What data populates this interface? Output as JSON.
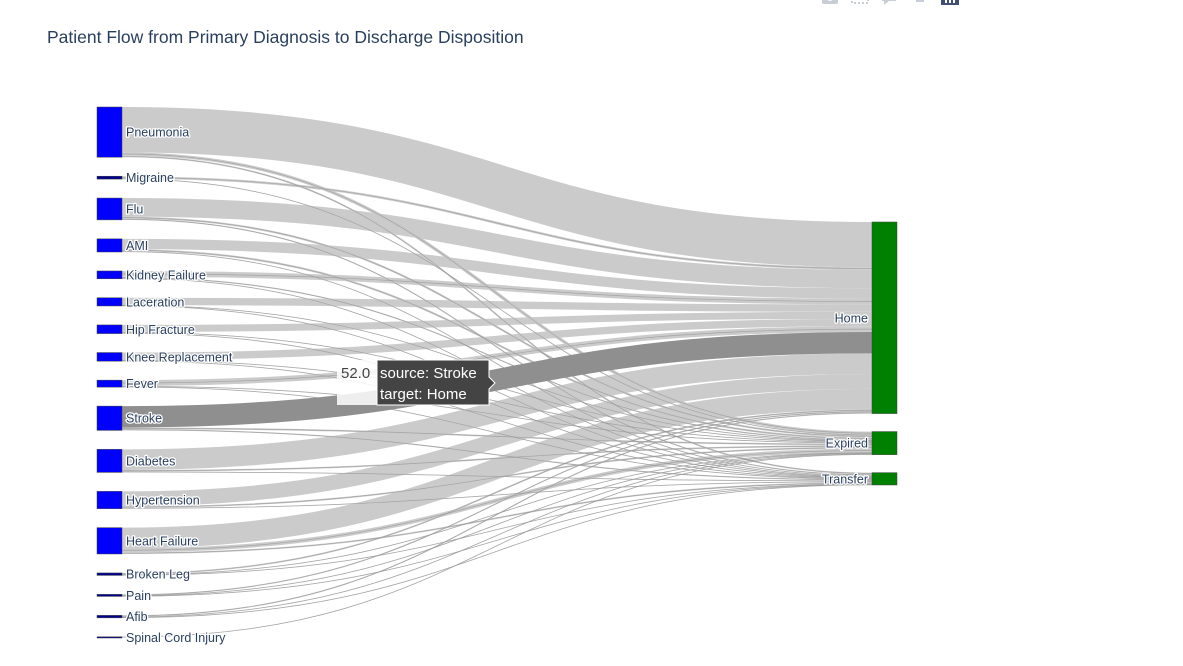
{
  "chart_data": {
    "type": "sankey",
    "title": "Patient Flow from Primary Diagnosis to Discharge Disposition",
    "colors": {
      "source_node": "#0000ff",
      "small_source_node": "#00008b",
      "target_node": "#008000",
      "link": "#c8c8c8",
      "link_hover": "#8f8f8f",
      "title": "#2a3f5f"
    },
    "source_nodes": [
      "Pneumonia",
      "Migraine",
      "Flu",
      "AMI",
      "Kidney Failure",
      "Laceration",
      "Hip Fracture",
      "Knee Replacement",
      "Fever",
      "Stroke",
      "Diabetes",
      "Hypertension",
      "Heart Failure",
      "Broken Leg",
      "Pain",
      "Afib",
      "Spinal Cord Injury"
    ],
    "target_nodes": [
      "Home",
      "Expired",
      "Transfer"
    ],
    "links": [
      {
        "source": "Pneumonia",
        "target": "Home",
        "value": 110
      },
      {
        "source": "Pneumonia",
        "target": "Expired",
        "value": 8
      },
      {
        "source": "Pneumonia",
        "target": "Transfer",
        "value": 4
      },
      {
        "source": "Migraine",
        "target": "Home",
        "value": 6
      },
      {
        "source": "Migraine",
        "target": "Expired",
        "value": 1
      },
      {
        "source": "Flu",
        "target": "Home",
        "value": 45
      },
      {
        "source": "Flu",
        "target": "Expired",
        "value": 5
      },
      {
        "source": "Flu",
        "target": "Transfer",
        "value": 3
      },
      {
        "source": "AMI",
        "target": "Home",
        "value": 25
      },
      {
        "source": "AMI",
        "target": "Expired",
        "value": 5
      },
      {
        "source": "AMI",
        "target": "Transfer",
        "value": 2
      },
      {
        "source": "Kidney Failure",
        "target": "Home",
        "value": 14
      },
      {
        "source": "Kidney Failure",
        "target": "Expired",
        "value": 3
      },
      {
        "source": "Kidney Failure",
        "target": "Transfer",
        "value": 2
      },
      {
        "source": "Laceration",
        "target": "Home",
        "value": 18
      },
      {
        "source": "Laceration",
        "target": "Expired",
        "value": 1
      },
      {
        "source": "Laceration",
        "target": "Transfer",
        "value": 1
      },
      {
        "source": "Hip Fracture",
        "target": "Home",
        "value": 17
      },
      {
        "source": "Hip Fracture",
        "target": "Expired",
        "value": 2
      },
      {
        "source": "Hip Fracture",
        "target": "Transfer",
        "value": 2
      },
      {
        "source": "Knee Replacement",
        "target": "Home",
        "value": 18
      },
      {
        "source": "Knee Replacement",
        "target": "Expired",
        "value": 2
      },
      {
        "source": "Knee Replacement",
        "target": "Transfer",
        "value": 1
      },
      {
        "source": "Fever",
        "target": "Home",
        "value": 14
      },
      {
        "source": "Fever",
        "target": "Expired",
        "value": 2
      },
      {
        "source": "Fever",
        "target": "Transfer",
        "value": 1
      },
      {
        "source": "Stroke",
        "target": "Home",
        "value": 52
      },
      {
        "source": "Stroke",
        "target": "Expired",
        "value": 4
      },
      {
        "source": "Stroke",
        "target": "Transfer",
        "value": 3
      },
      {
        "source": "Diabetes",
        "target": "Home",
        "value": 50
      },
      {
        "source": "Diabetes",
        "target": "Expired",
        "value": 4
      },
      {
        "source": "Diabetes",
        "target": "Transfer",
        "value": 2
      },
      {
        "source": "Hypertension",
        "target": "Home",
        "value": 36
      },
      {
        "source": "Hypertension",
        "target": "Expired",
        "value": 4
      },
      {
        "source": "Hypertension",
        "target": "Transfer",
        "value": 2
      },
      {
        "source": "Heart Failure",
        "target": "Home",
        "value": 50
      },
      {
        "source": "Heart Failure",
        "target": "Expired",
        "value": 10
      },
      {
        "source": "Heart Failure",
        "target": "Transfer",
        "value": 4
      },
      {
        "source": "Broken Leg",
        "target": "Home",
        "value": 4
      },
      {
        "source": "Broken Leg",
        "target": "Expired",
        "value": 1
      },
      {
        "source": "Broken Leg",
        "target": "Transfer",
        "value": 1
      },
      {
        "source": "Pain",
        "target": "Home",
        "value": 3
      },
      {
        "source": "Pain",
        "target": "Expired",
        "value": 1
      },
      {
        "source": "Pain",
        "target": "Transfer",
        "value": 1
      },
      {
        "source": "Afib",
        "target": "Home",
        "value": 3
      },
      {
        "source": "Afib",
        "target": "Expired",
        "value": 2
      },
      {
        "source": "Afib",
        "target": "Transfer",
        "value": 1
      },
      {
        "source": "Spinal Cord Injury",
        "target": "Expired",
        "value": 1
      }
    ],
    "hover": {
      "value": "52.0",
      "source_line": "source: Stroke",
      "target_line": "target: Home",
      "link_source": "Stroke",
      "link_target": "Home"
    }
  },
  "modebar": {
    "icons": [
      "camera-icon",
      "zoom-icon",
      "comment-icon",
      "home-icon",
      "plotly-logo-icon"
    ]
  }
}
